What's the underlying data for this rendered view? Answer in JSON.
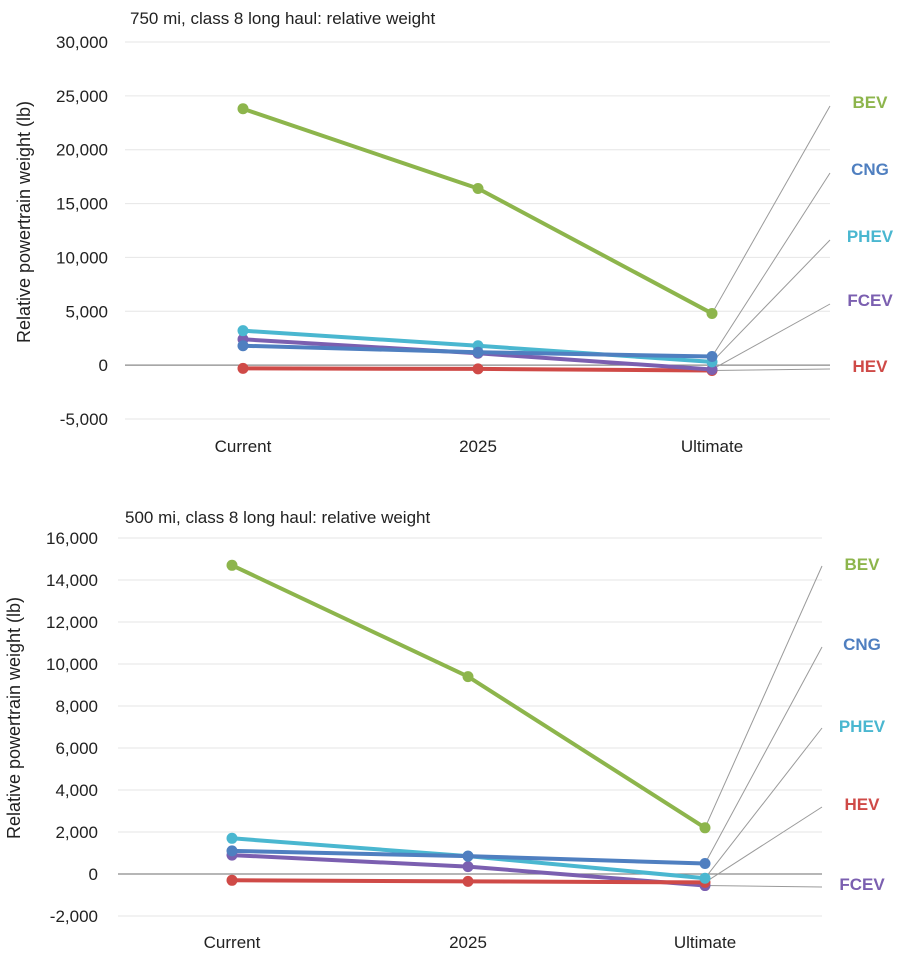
{
  "chart_data": [
    {
      "type": "line",
      "title": "750 mi, class 8 long haul: relative weight",
      "ylabel": "Relative powertrain weight (lb)",
      "categories": [
        "Current",
        "2025",
        "Ultimate"
      ],
      "ylim": [
        -5000,
        30000
      ],
      "yticks": [
        30000,
        25000,
        20000,
        15000,
        10000,
        5000,
        0,
        -5000
      ],
      "ytick_labels": [
        "30,000",
        "25,000",
        "20,000",
        "15,000",
        "10,000",
        "5,000",
        "0",
        "-5,000"
      ],
      "grid": true,
      "legend_placement": "right",
      "series": [
        {
          "name": "BEV",
          "color": "#8db54c",
          "values": [
            23800,
            16400,
            4800
          ]
        },
        {
          "name": "CNG",
          "color": "#4f7fc0",
          "values": [
            1800,
            1200,
            800
          ]
        },
        {
          "name": "PHEV",
          "color": "#4ab7d0",
          "values": [
            3200,
            1800,
            300
          ]
        },
        {
          "name": "FCEV",
          "color": "#7b5fb0",
          "values": [
            2400,
            1100,
            -400
          ]
        },
        {
          "name": "HEV",
          "color": "#cf4a47",
          "values": [
            -300,
            -350,
            -500
          ]
        }
      ]
    },
    {
      "type": "line",
      "title": "500 mi, class 8 long haul: relative weight",
      "ylabel": "Relative powertrain weight (lb)",
      "categories": [
        "Current",
        "2025",
        "Ultimate"
      ],
      "ylim": [
        -2000,
        16000
      ],
      "yticks": [
        16000,
        14000,
        12000,
        10000,
        8000,
        6000,
        4000,
        2000,
        0,
        -2000
      ],
      "ytick_labels": [
        "16,000",
        "14,000",
        "12,000",
        "10,000",
        "8,000",
        "6,000",
        "4,000",
        "2,000",
        "0",
        "-2,000"
      ],
      "grid": true,
      "legend_placement": "right",
      "series": [
        {
          "name": "BEV",
          "color": "#8db54c",
          "values": [
            14700,
            9400,
            2200
          ]
        },
        {
          "name": "CNG",
          "color": "#4f7fc0",
          "values": [
            1100,
            850,
            500
          ]
        },
        {
          "name": "PHEV",
          "color": "#4ab7d0",
          "values": [
            1700,
            850,
            -200
          ]
        },
        {
          "name": "HEV",
          "color": "#cf4a47",
          "values": [
            -300,
            -350,
            -400
          ]
        },
        {
          "name": "FCEV",
          "color": "#7b5fb0",
          "values": [
            900,
            350,
            -550
          ]
        }
      ]
    }
  ]
}
